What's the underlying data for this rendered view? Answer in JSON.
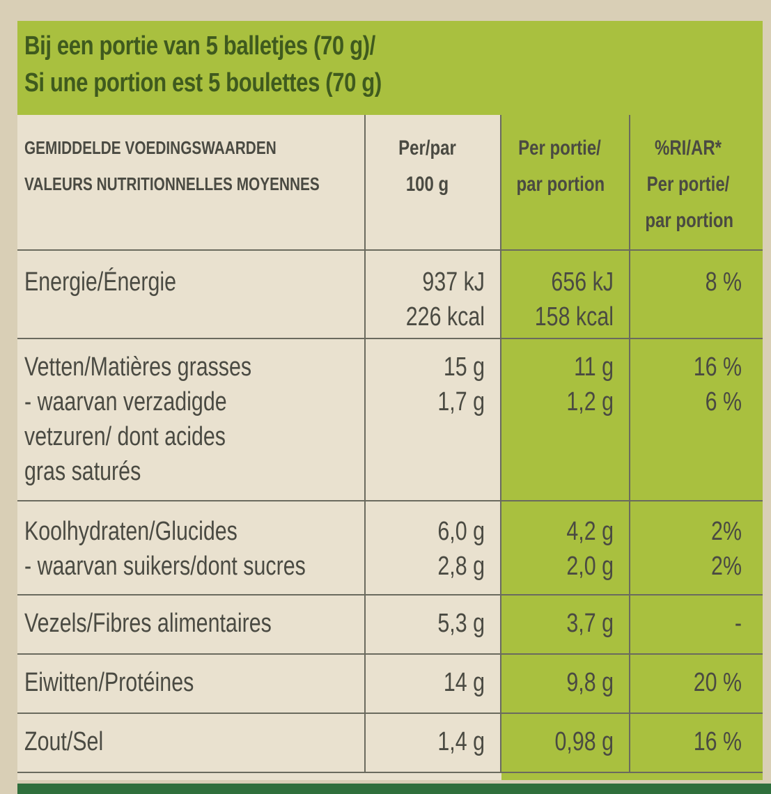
{
  "header": {
    "lines": [
      "Bij een portie van 5 balletjes (70 g)/",
      "Si une portion est 5 boulettes (70 g)"
    ]
  },
  "table": {
    "rows": [
      [
        [
          "GEMIDDELDE VOEDINGSWAARDEN",
          "VALEURS NUTRITIONNELLES MOYENNES"
        ],
        [
          "Per/par",
          "100 g"
        ],
        [
          "Per portie/",
          "par portion"
        ],
        [
          "%RI/AR*",
          "Per portie/",
          "par portion"
        ]
      ],
      [
        [
          "Energie/Énergie"
        ],
        [
          "937 kJ",
          "226 kcal"
        ],
        [
          "656 kJ",
          "158 kcal"
        ],
        [
          "8 %"
        ]
      ],
      [
        [
          "Vetten/Matières grasses",
          "- waarvan verzadigde",
          "vetzuren/ dont acides",
          "gras saturés"
        ],
        [
          "15 g",
          "1,7 g"
        ],
        [
          "11 g",
          "1,2 g"
        ],
        [
          "16 %",
          "6 %"
        ]
      ],
      [
        [
          "Koolhydraten/Glucides",
          "- waarvan suikers/dont sucres"
        ],
        [
          "6,0 g",
          "2,8 g"
        ],
        [
          "4,2 g",
          "2,0 g"
        ],
        [
          "2%",
          "2%"
        ]
      ],
      [
        [
          "Vezels/Fibres alimentaires"
        ],
        [
          "5,3 g"
        ],
        [
          "3,7 g"
        ],
        [
          "-"
        ]
      ],
      [
        [
          "Eiwitten/Protéines"
        ],
        [
          "14 g"
        ],
        [
          "9,8 g"
        ],
        [
          "20 %"
        ]
      ],
      [
        [
          "Zout/Sel"
        ],
        [
          "1,4 g"
        ],
        [
          "0,98 g"
        ],
        [
          "16 %"
        ]
      ]
    ]
  }
}
